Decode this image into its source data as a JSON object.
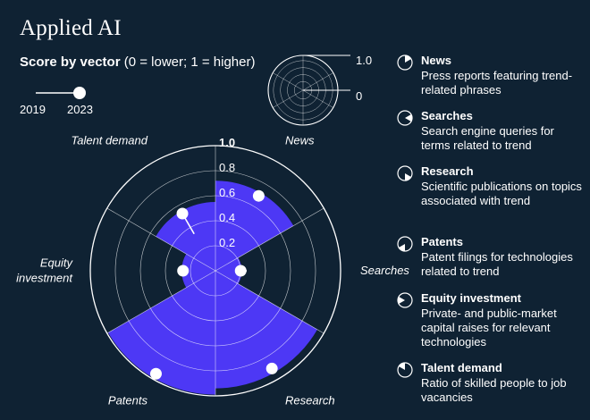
{
  "title": "Applied AI",
  "subtitle": {
    "bold": "Score by vector",
    "rest": " (0 = lower; 1 = higher)"
  },
  "scale_legend": {
    "max_label": "1.0",
    "min_label": "0"
  },
  "year_legend": {
    "start": "2019",
    "end": "2023"
  },
  "colors": {
    "background": "#0f2233",
    "fill": "#4d38f5",
    "line": "#ffffff",
    "grid": "#ffffff"
  },
  "chart_data": {
    "type": "polar-area",
    "rmax": 1.0,
    "ticks": [
      "0.2",
      "0.4",
      "0.6",
      "0.8",
      "1.0"
    ],
    "tick_values": [
      0.2,
      0.4,
      0.6,
      0.8,
      1.0
    ],
    "vectors": [
      {
        "name": "News",
        "score_2023": 0.72,
        "score_2019": 0.65,
        "label": "News"
      },
      {
        "name": "Searches",
        "score_2023": 0.21,
        "score_2019": 0.25,
        "label": "Searches"
      },
      {
        "name": "Research",
        "score_2023": 0.94,
        "score_2019": 0.9,
        "label": "Research"
      },
      {
        "name": "Patents",
        "score_2023": 0.99,
        "score_2019": 0.94,
        "label": "Patents"
      },
      {
        "name": "Equity investment",
        "score_2023": 0.27,
        "score_2019": 0.25,
        "label": "Equity investment"
      },
      {
        "name": "Talent demand",
        "score_2023": 0.55,
        "score_2019": 0.34,
        "label": "Talent demand"
      }
    ]
  },
  "legend": [
    {
      "name": "News",
      "desc": "Press reports featuring trend-related phrases",
      "icon": "sector-1-icon"
    },
    {
      "name": "Searches",
      "desc": "Search engine queries for terms related to trend",
      "icon": "sector-2-icon"
    },
    {
      "name": "Research",
      "desc": "Scientific publications on topics associated with trend",
      "icon": "sector-3-icon"
    },
    {
      "name": "Patents",
      "desc": "Patent filings for technologies related to trend",
      "icon": "sector-4-icon"
    },
    {
      "name": "Equity investment",
      "desc": "Private- and public-market capital raises for relevant technologies",
      "icon": "sector-5-icon"
    },
    {
      "name": "Talent demand",
      "desc": "Ratio of skilled people to job vacancies",
      "icon": "sector-6-icon"
    }
  ]
}
